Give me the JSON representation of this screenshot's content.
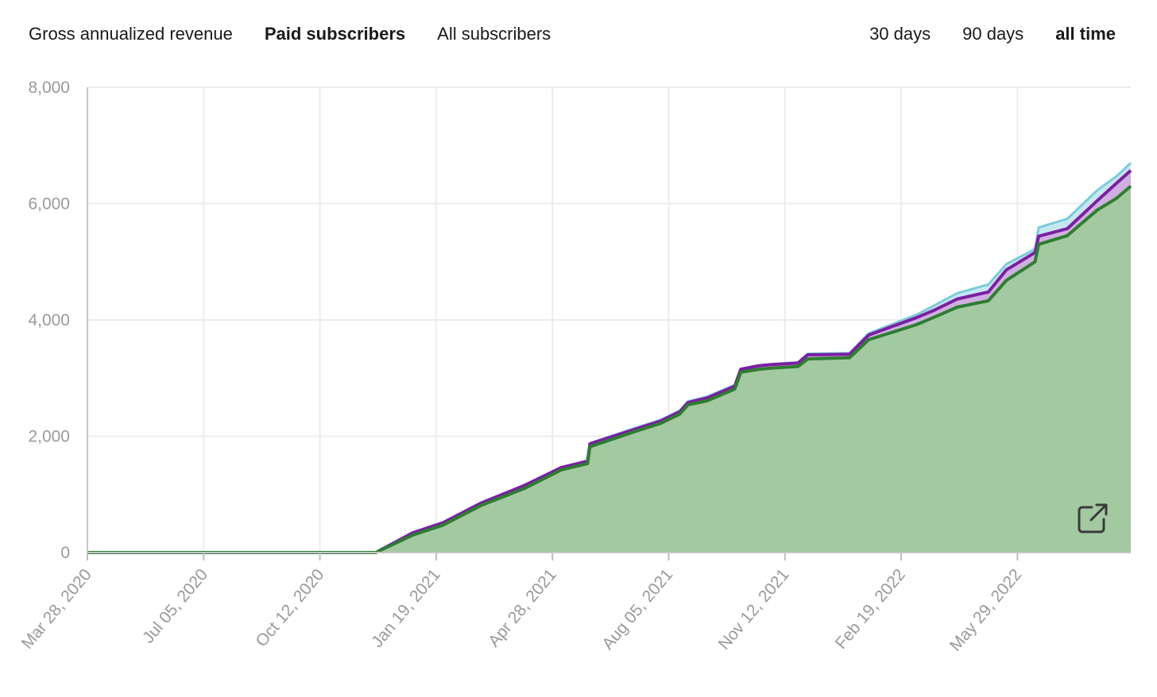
{
  "metric_tabs": [
    {
      "label": "Gross annualized revenue",
      "active": false
    },
    {
      "label": "Paid subscribers",
      "active": true
    },
    {
      "label": "All subscribers",
      "active": false
    }
  ],
  "range_tabs": [
    {
      "label": "30 days",
      "active": false
    },
    {
      "label": "90 days",
      "active": false
    },
    {
      "label": "all time",
      "active": true
    }
  ],
  "expand_button": {
    "icon": "external-link-icon"
  },
  "chart_data": {
    "type": "area",
    "title": "",
    "xlabel": "",
    "ylabel": "",
    "ylim": [
      0,
      8000
    ],
    "grid": true,
    "yticks": [
      "0",
      "2,000",
      "4,000",
      "6,000",
      "8,000"
    ],
    "ytick_values": [
      0,
      2000,
      4000,
      6000,
      8000
    ],
    "xticks": [
      "Mar 28, 2020",
      "Jul 05, 2020",
      "Oct 12, 2020",
      "Jan 19, 2021",
      "Apr 28, 2021",
      "Aug 05, 2021",
      "Nov 12, 2021",
      "Feb 19, 2022",
      "May 29, 2022"
    ],
    "xlim": [
      "2020-03-28",
      "2022-08-17"
    ],
    "colors": {
      "green": "#2e7d32",
      "green_fill": "#a3c9a0",
      "purple": "#7b1fa2",
      "purple_fill": "#cfa8e0",
      "cyan": "#7ecbd8"
    },
    "series": [
      {
        "color": "cyan",
        "x": [
          "2020-03-28",
          "2020-11-24",
          "2020-12-25",
          "2021-01-19",
          "2021-02-20",
          "2021-03-28",
          "2021-04-28",
          "2021-05-20",
          "2021-05-22",
          "2021-06-30",
          "2021-07-20",
          "2021-08-05",
          "2021-08-12",
          "2021-08-28",
          "2021-09-20",
          "2021-09-25",
          "2021-10-10",
          "2021-10-20",
          "2021-11-12",
          "2021-11-20",
          "2021-12-25",
          "2022-01-10",
          "2022-02-19",
          "2022-03-05",
          "2022-03-25",
          "2022-04-20",
          "2022-05-05",
          "2022-05-29",
          "2022-06-01",
          "2022-06-25",
          "2022-07-20",
          "2022-08-05",
          "2022-08-17"
        ],
        "values": [
          0,
          0,
          350,
          520,
          860,
          1160,
          1470,
          1580,
          1880,
          2150,
          2280,
          2440,
          2600,
          2680,
          2880,
          3160,
          3220,
          3240,
          3270,
          3420,
          3430,
          3770,
          4090,
          4240,
          4460,
          4610,
          4960,
          5220,
          5590,
          5740,
          6230,
          6470,
          6700
        ]
      },
      {
        "color": "purple",
        "x": [
          "2020-03-28",
          "2020-11-24",
          "2020-12-25",
          "2021-01-19",
          "2021-02-20",
          "2021-03-28",
          "2021-04-28",
          "2021-05-20",
          "2021-05-22",
          "2021-06-30",
          "2021-07-20",
          "2021-08-05",
          "2021-08-12",
          "2021-08-28",
          "2021-09-20",
          "2021-09-25",
          "2021-10-10",
          "2021-10-20",
          "2021-11-12",
          "2021-11-20",
          "2021-12-25",
          "2022-01-10",
          "2022-02-19",
          "2022-03-05",
          "2022-03-25",
          "2022-04-20",
          "2022-05-05",
          "2022-05-29",
          "2022-06-01",
          "2022-06-25",
          "2022-07-20",
          "2022-08-05",
          "2022-08-17"
        ],
        "values": [
          0,
          0,
          340,
          510,
          850,
          1150,
          1460,
          1570,
          1870,
          2130,
          2260,
          2420,
          2580,
          2660,
          2860,
          3150,
          3210,
          3230,
          3260,
          3400,
          3410,
          3740,
          4040,
          4160,
          4360,
          4480,
          4860,
          5160,
          5440,
          5570,
          6050,
          6350,
          6570
        ]
      },
      {
        "color": "green",
        "x": [
          "2020-03-28",
          "2020-11-24",
          "2020-12-25",
          "2021-01-19",
          "2021-02-20",
          "2021-03-28",
          "2021-04-28",
          "2021-05-20",
          "2021-05-22",
          "2021-06-30",
          "2021-07-20",
          "2021-08-05",
          "2021-08-12",
          "2021-08-28",
          "2021-09-20",
          "2021-09-25",
          "2021-10-10",
          "2021-10-20",
          "2021-11-12",
          "2021-11-20",
          "2021-12-25",
          "2022-01-10",
          "2022-02-19",
          "2022-03-05",
          "2022-03-25",
          "2022-04-20",
          "2022-05-05",
          "2022-05-29",
          "2022-06-01",
          "2022-06-25",
          "2022-07-20",
          "2022-08-05",
          "2022-08-17"
        ],
        "values": [
          0,
          0,
          300,
          470,
          810,
          1100,
          1420,
          1530,
          1820,
          2090,
          2220,
          2380,
          2540,
          2610,
          2810,
          3100,
          3150,
          3170,
          3200,
          3330,
          3350,
          3660,
          3920,
          4040,
          4220,
          4330,
          4680,
          5000,
          5300,
          5450,
          5890,
          6090,
          6300
        ]
      }
    ]
  }
}
